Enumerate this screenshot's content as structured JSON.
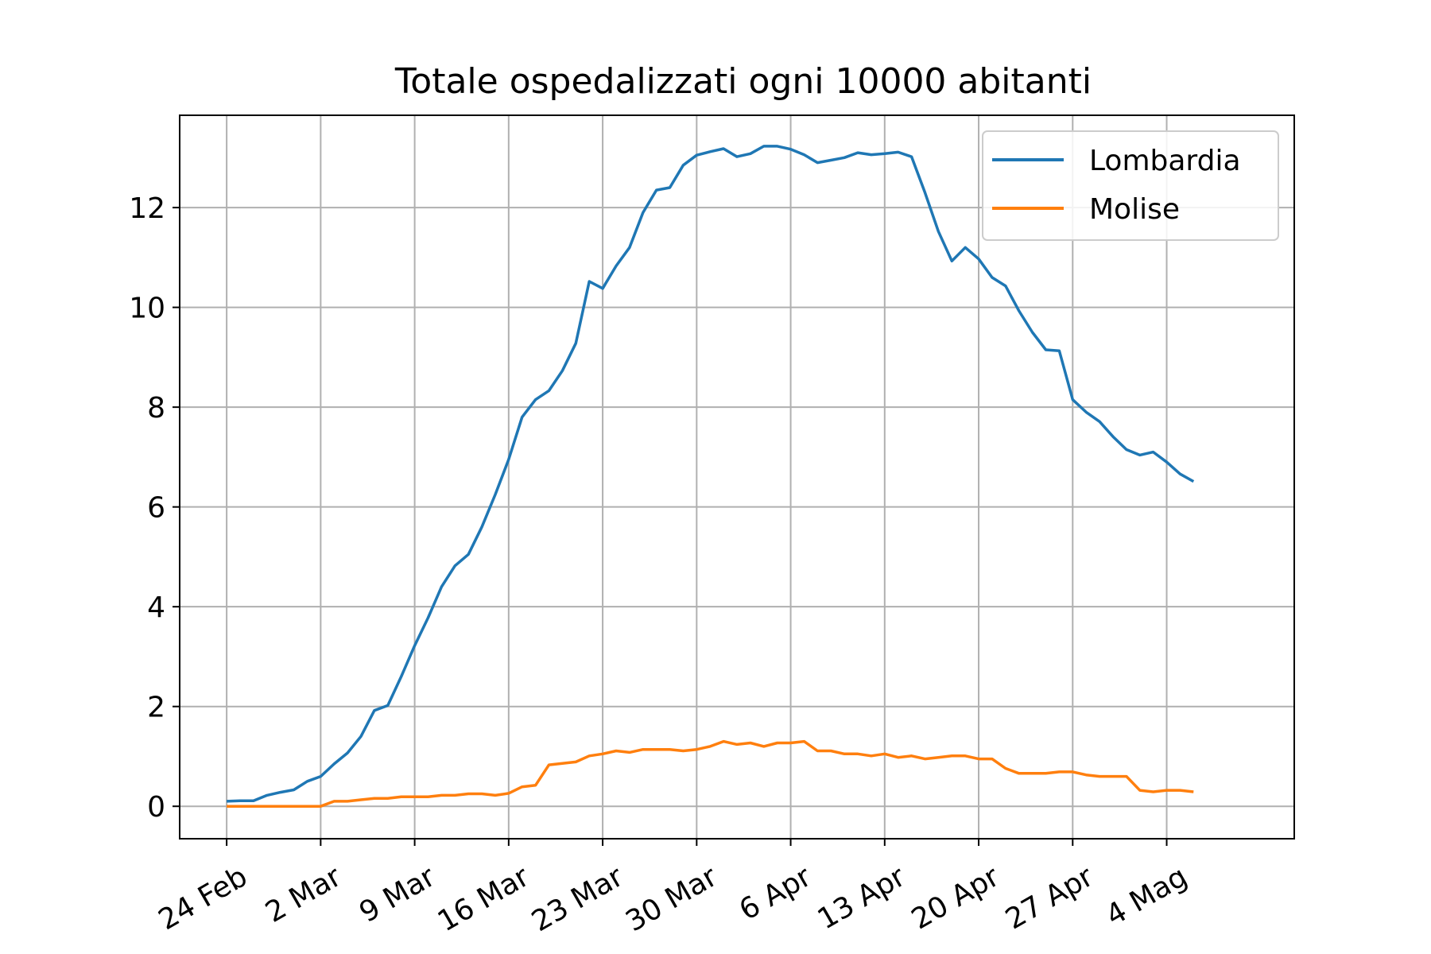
{
  "chart_data": {
    "type": "line",
    "title": "Totale ospedalizzati ogni 10000 abitanti",
    "xlabel": "",
    "ylabel": "",
    "grid": true,
    "legend_position": "top-right",
    "x_start": "2020-02-24",
    "x_step_days": 1,
    "xlim": [
      -3.5,
      79.5
    ],
    "ylim": [
      -0.65,
      13.85
    ],
    "x_ticks": [
      {
        "day": 0,
        "label": "24 Feb"
      },
      {
        "day": 7,
        "label": "2 Mar"
      },
      {
        "day": 14,
        "label": "9 Mar"
      },
      {
        "day": 21,
        "label": "16 Mar"
      },
      {
        "day": 28,
        "label": "23 Mar"
      },
      {
        "day": 35,
        "label": "30 Mar"
      },
      {
        "day": 42,
        "label": "6 Apr"
      },
      {
        "day": 49,
        "label": "13 Apr"
      },
      {
        "day": 56,
        "label": "20 Apr"
      },
      {
        "day": 63,
        "label": "27 Apr"
      },
      {
        "day": 70,
        "label": "4 Mag"
      }
    ],
    "y_ticks": [
      0,
      2,
      4,
      6,
      8,
      10,
      12
    ],
    "series": [
      {
        "name": "Lombardia",
        "color": "#1f77b4",
        "values": [
          0.1,
          0.11,
          0.11,
          0.22,
          0.28,
          0.33,
          0.5,
          0.6,
          0.85,
          1.07,
          1.4,
          1.92,
          2.02,
          2.6,
          3.22,
          3.78,
          4.4,
          4.82,
          5.05,
          5.6,
          6.25,
          6.95,
          7.8,
          8.15,
          8.33,
          8.73,
          9.28,
          10.52,
          10.38,
          10.83,
          11.2,
          11.9,
          12.35,
          12.4,
          12.85,
          13.05,
          13.12,
          13.18,
          13.02,
          13.08,
          13.23,
          13.23,
          13.17,
          13.06,
          12.9,
          12.95,
          13.0,
          13.1,
          13.06,
          13.08,
          13.11,
          13.02,
          12.3,
          11.52,
          10.93,
          11.2,
          10.97,
          10.6,
          10.43,
          9.93,
          9.5,
          9.15,
          9.13,
          8.15,
          7.9,
          7.71,
          7.41,
          7.15,
          7.04,
          7.1,
          6.9,
          6.66,
          6.51
        ]
      },
      {
        "name": "Molise",
        "color": "#ff7f0e",
        "values": [
          0.0,
          0.0,
          0.0,
          0.0,
          0.0,
          0.0,
          0.0,
          0.0,
          0.1,
          0.1,
          0.13,
          0.16,
          0.16,
          0.19,
          0.19,
          0.19,
          0.22,
          0.22,
          0.25,
          0.25,
          0.22,
          0.26,
          0.39,
          0.42,
          0.83,
          0.86,
          0.89,
          1.01,
          1.05,
          1.11,
          1.08,
          1.14,
          1.14,
          1.14,
          1.11,
          1.14,
          1.2,
          1.3,
          1.24,
          1.27,
          1.2,
          1.27,
          1.27,
          1.3,
          1.11,
          1.11,
          1.05,
          1.05,
          1.01,
          1.05,
          0.98,
          1.01,
          0.95,
          0.98,
          1.01,
          1.01,
          0.95,
          0.95,
          0.76,
          0.66,
          0.66,
          0.66,
          0.69,
          0.69,
          0.63,
          0.6,
          0.6,
          0.6,
          0.32,
          0.29,
          0.32,
          0.32,
          0.29
        ]
      }
    ]
  }
}
